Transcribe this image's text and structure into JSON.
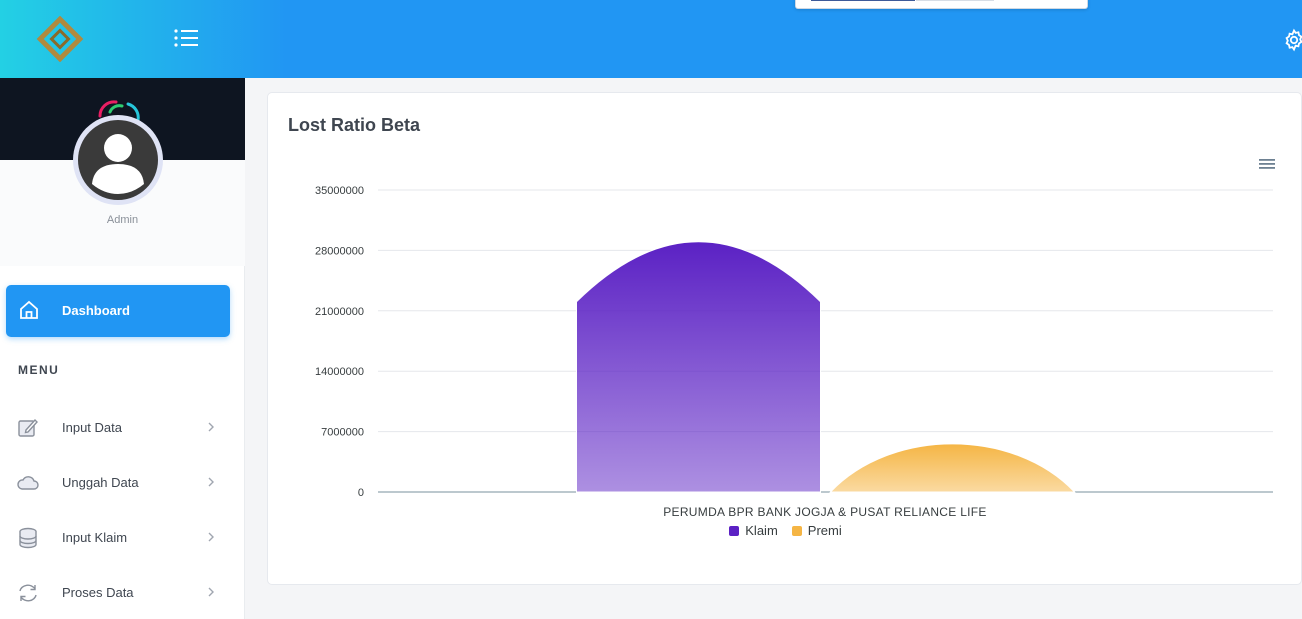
{
  "header": {
    "menu_icon": "list-menu-icon",
    "settings_icon": "gear-icon"
  },
  "profile": {
    "name": "Admin"
  },
  "sidebar": {
    "active": {
      "label": "Dashboard",
      "icon": "home-icon"
    },
    "section_title": "MENU",
    "items": [
      {
        "label": "Input Data",
        "icon": "edit-icon"
      },
      {
        "label": "Unggah Data",
        "icon": "cloud-icon"
      },
      {
        "label": "Input Klaim",
        "icon": "database-icon"
      },
      {
        "label": "Proses Data",
        "icon": "refresh-icon"
      }
    ]
  },
  "card": {
    "title": "Lost Ratio Beta"
  },
  "chart_data": {
    "type": "bar",
    "title": "Lost Ratio Beta",
    "categories": [
      "PERUMDA BPR BANK JOGJA & PUSAT RELIANCE LIFE"
    ],
    "series": [
      {
        "name": "Klaim",
        "values": [
          29000000
        ],
        "color": "#5b21c4"
      },
      {
        "name": "Premi",
        "values": [
          6200000
        ],
        "color": "#f5b544"
      }
    ],
    "ylim": [
      0,
      35000000
    ],
    "yticks": [
      "35000000",
      "28000000",
      "21000000",
      "14000000",
      "7000000",
      "0"
    ],
    "grid": true,
    "legend": "bottom"
  }
}
